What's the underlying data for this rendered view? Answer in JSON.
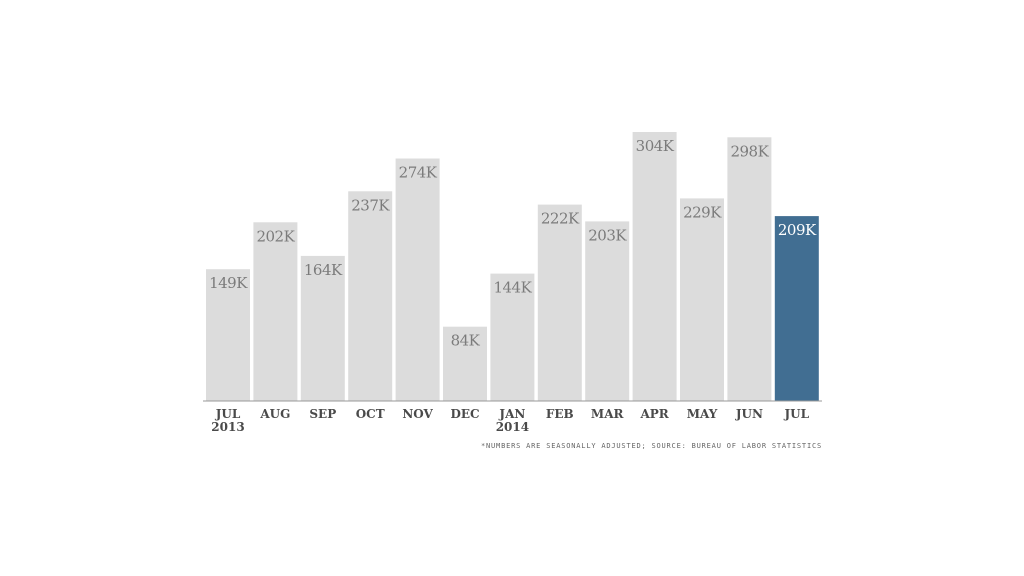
{
  "chart_data": {
    "type": "bar",
    "categories": [
      {
        "label": "JUL",
        "sublabel": "2013"
      },
      {
        "label": "AUG",
        "sublabel": ""
      },
      {
        "label": "SEP",
        "sublabel": ""
      },
      {
        "label": "OCT",
        "sublabel": ""
      },
      {
        "label": "NOV",
        "sublabel": ""
      },
      {
        "label": "DEC",
        "sublabel": ""
      },
      {
        "label": "JAN",
        "sublabel": "2014"
      },
      {
        "label": "FEB",
        "sublabel": ""
      },
      {
        "label": "MAR",
        "sublabel": ""
      },
      {
        "label": "APR",
        "sublabel": ""
      },
      {
        "label": "MAY",
        "sublabel": ""
      },
      {
        "label": "JUN",
        "sublabel": ""
      },
      {
        "label": "JUL",
        "sublabel": ""
      }
    ],
    "values": [
      149,
      202,
      164,
      237,
      274,
      84,
      144,
      222,
      203,
      304,
      229,
      298,
      209
    ],
    "data_labels": [
      "149K",
      "202K",
      "164K",
      "237K",
      "274K",
      "84K",
      "144K",
      "222K",
      "203K",
      "304K",
      "229K",
      "298K",
      "209K"
    ],
    "highlight_index": 12,
    "ylim": [
      0,
      304
    ],
    "grid": false,
    "note": "*NUMBERS ARE SEASONALLY ADJUSTED; SOURCE: BUREAU OF LABOR STATISTICS"
  },
  "colors": {
    "bar": "#dcdcdc",
    "bar_highlight": "#416e92",
    "label": "#7b7b7b",
    "label_highlight": "#ffffff",
    "axis": "#999999"
  }
}
